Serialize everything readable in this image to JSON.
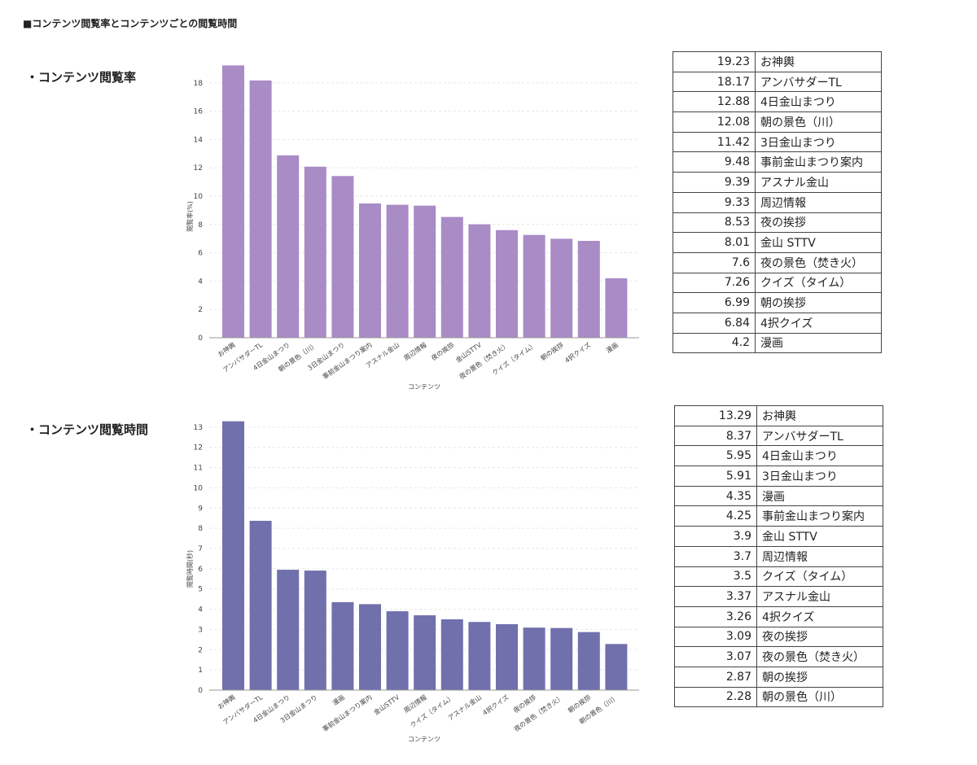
{
  "page_title": "■コンテンツ閲覧率とコンテンツごとの閲覧時間",
  "section1": {
    "title": "・コンテンツ閲覧率"
  },
  "section2": {
    "title": "・コンテンツ閲覧時間"
  },
  "chart_data": [
    {
      "type": "bar",
      "categories": [
        "お神輿",
        "アンバサダーTL",
        "4日金山まつり",
        "朝の景色（川）",
        "3日金山まつり",
        "事前金山まつり案内",
        "アスナル金山",
        "周辺情報",
        "夜の挨拶",
        "金山STTV",
        "夜の景色（焚き火）",
        "クイズ（タイム）",
        "朝の挨拶",
        "4択クイズ",
        "漫画"
      ],
      "values": [
        19.23,
        18.17,
        12.88,
        12.08,
        11.42,
        9.48,
        9.39,
        9.33,
        8.53,
        8.01,
        7.6,
        7.26,
        6.99,
        6.84,
        4.2
      ],
      "xlabel": "コンテンツ",
      "ylabel": "閲覧率(%)",
      "ylim": [
        0,
        20
      ],
      "yticks": [
        0,
        2,
        4,
        6,
        8,
        10,
        12,
        14,
        16,
        18
      ],
      "color": "#a98bc6",
      "grid": true
    },
    {
      "type": "bar",
      "categories": [
        "お神輿",
        "アンバサダーTL",
        "4日金山まつり",
        "3日金山まつり",
        "漫画",
        "事前金山まつり案内",
        "金山STTV",
        "周辺情報",
        "クイズ（タイム）",
        "アスナル金山",
        "4択クイズ",
        "夜の挨拶",
        "夜の景色（焚き火）",
        "朝の挨拶",
        "朝の景色（川）"
      ],
      "values": [
        13.29,
        8.37,
        5.95,
        5.91,
        4.35,
        4.25,
        3.9,
        3.7,
        3.5,
        3.37,
        3.26,
        3.09,
        3.07,
        2.87,
        2.28
      ],
      "xlabel": "コンテンツ",
      "ylabel": "閲覧時間(秒)",
      "ylim": [
        0,
        14
      ],
      "yticks": [
        0,
        1,
        2,
        3,
        4,
        5,
        6,
        7,
        8,
        9,
        10,
        11,
        12,
        13
      ],
      "color": "#7070ad",
      "grid": true
    }
  ],
  "table1": [
    {
      "value": "19.23",
      "name": "お神輿"
    },
    {
      "value": "18.17",
      "name": "アンバサダーTL"
    },
    {
      "value": "12.88",
      "name": "4日金山まつり"
    },
    {
      "value": "12.08",
      "name": "朝の景色（川）"
    },
    {
      "value": "11.42",
      "name": "3日金山まつり"
    },
    {
      "value": "9.48",
      "name": "事前金山まつり案内"
    },
    {
      "value": "9.39",
      "name": "アスナル金山"
    },
    {
      "value": "9.33",
      "name": "周辺情報"
    },
    {
      "value": "8.53",
      "name": "夜の挨拶"
    },
    {
      "value": "8.01",
      "name": "金山 STTV"
    },
    {
      "value": "7.6",
      "name": "夜の景色（焚き火）"
    },
    {
      "value": "7.26",
      "name": "クイズ（タイム）"
    },
    {
      "value": "6.99",
      "name": "朝の挨拶"
    },
    {
      "value": "6.84",
      "name": "4択クイズ"
    },
    {
      "value": "4.2",
      "name": "漫画"
    }
  ],
  "table2": [
    {
      "value": "13.29",
      "name": "お神輿"
    },
    {
      "value": "8.37",
      "name": "アンバサダーTL"
    },
    {
      "value": "5.95",
      "name": "4日金山まつり"
    },
    {
      "value": "5.91",
      "name": "3日金山まつり"
    },
    {
      "value": "4.35",
      "name": "漫画"
    },
    {
      "value": "4.25",
      "name": "事前金山まつり案内"
    },
    {
      "value": "3.9",
      "name": "金山 STTV"
    },
    {
      "value": "3.7",
      "name": "周辺情報"
    },
    {
      "value": "3.5",
      "name": "クイズ（タイム）"
    },
    {
      "value": "3.37",
      "name": "アスナル金山"
    },
    {
      "value": "3.26",
      "name": "4択クイズ"
    },
    {
      "value": "3.09",
      "name": "夜の挨拶"
    },
    {
      "value": "3.07",
      "name": "夜の景色（焚き火）"
    },
    {
      "value": "2.87",
      "name": "朝の挨拶"
    },
    {
      "value": "2.28",
      "name": "朝の景色（川）"
    }
  ]
}
